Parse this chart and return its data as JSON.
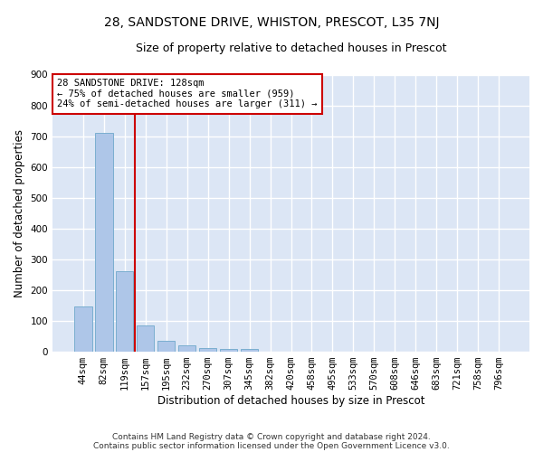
{
  "title_line1": "28, SANDSTONE DRIVE, WHISTON, PRESCOT, L35 7NJ",
  "title_line2": "Size of property relative to detached houses in Prescot",
  "xlabel": "Distribution of detached houses by size in Prescot",
  "ylabel": "Number of detached properties",
  "footnote1": "Contains HM Land Registry data © Crown copyright and database right 2024.",
  "footnote2": "Contains public sector information licensed under the Open Government Licence v3.0.",
  "categories": [
    "44sqm",
    "82sqm",
    "119sqm",
    "157sqm",
    "195sqm",
    "232sqm",
    "270sqm",
    "307sqm",
    "345sqm",
    "382sqm",
    "420sqm",
    "458sqm",
    "495sqm",
    "533sqm",
    "570sqm",
    "608sqm",
    "646sqm",
    "683sqm",
    "721sqm",
    "758sqm",
    "796sqm"
  ],
  "values": [
    148,
    710,
    262,
    85,
    35,
    20,
    13,
    10,
    10,
    0,
    0,
    0,
    0,
    0,
    0,
    0,
    0,
    0,
    0,
    0,
    0
  ],
  "bar_color": "#aec6e8",
  "bar_edge_color": "#7aaed0",
  "red_line_x": 2.5,
  "annotation_line1": "28 SANDSTONE DRIVE: 128sqm",
  "annotation_line2": "← 75% of detached houses are smaller (959)",
  "annotation_line3": "24% of semi-detached houses are larger (311) →",
  "annotation_box_color": "#ffffff",
  "annotation_box_edge_color": "#cc0000",
  "annotation_text_fontsize": 7.5,
  "background_color": "#dce6f5",
  "ylim": [
    0,
    900
  ],
  "yticks": [
    0,
    100,
    200,
    300,
    400,
    500,
    600,
    700,
    800,
    900
  ],
  "grid_color": "#ffffff",
  "title1_fontsize": 10,
  "title2_fontsize": 9,
  "xlabel_fontsize": 8.5,
  "ylabel_fontsize": 8.5,
  "tick_fontsize": 7.5,
  "footnote_fontsize": 6.5
}
